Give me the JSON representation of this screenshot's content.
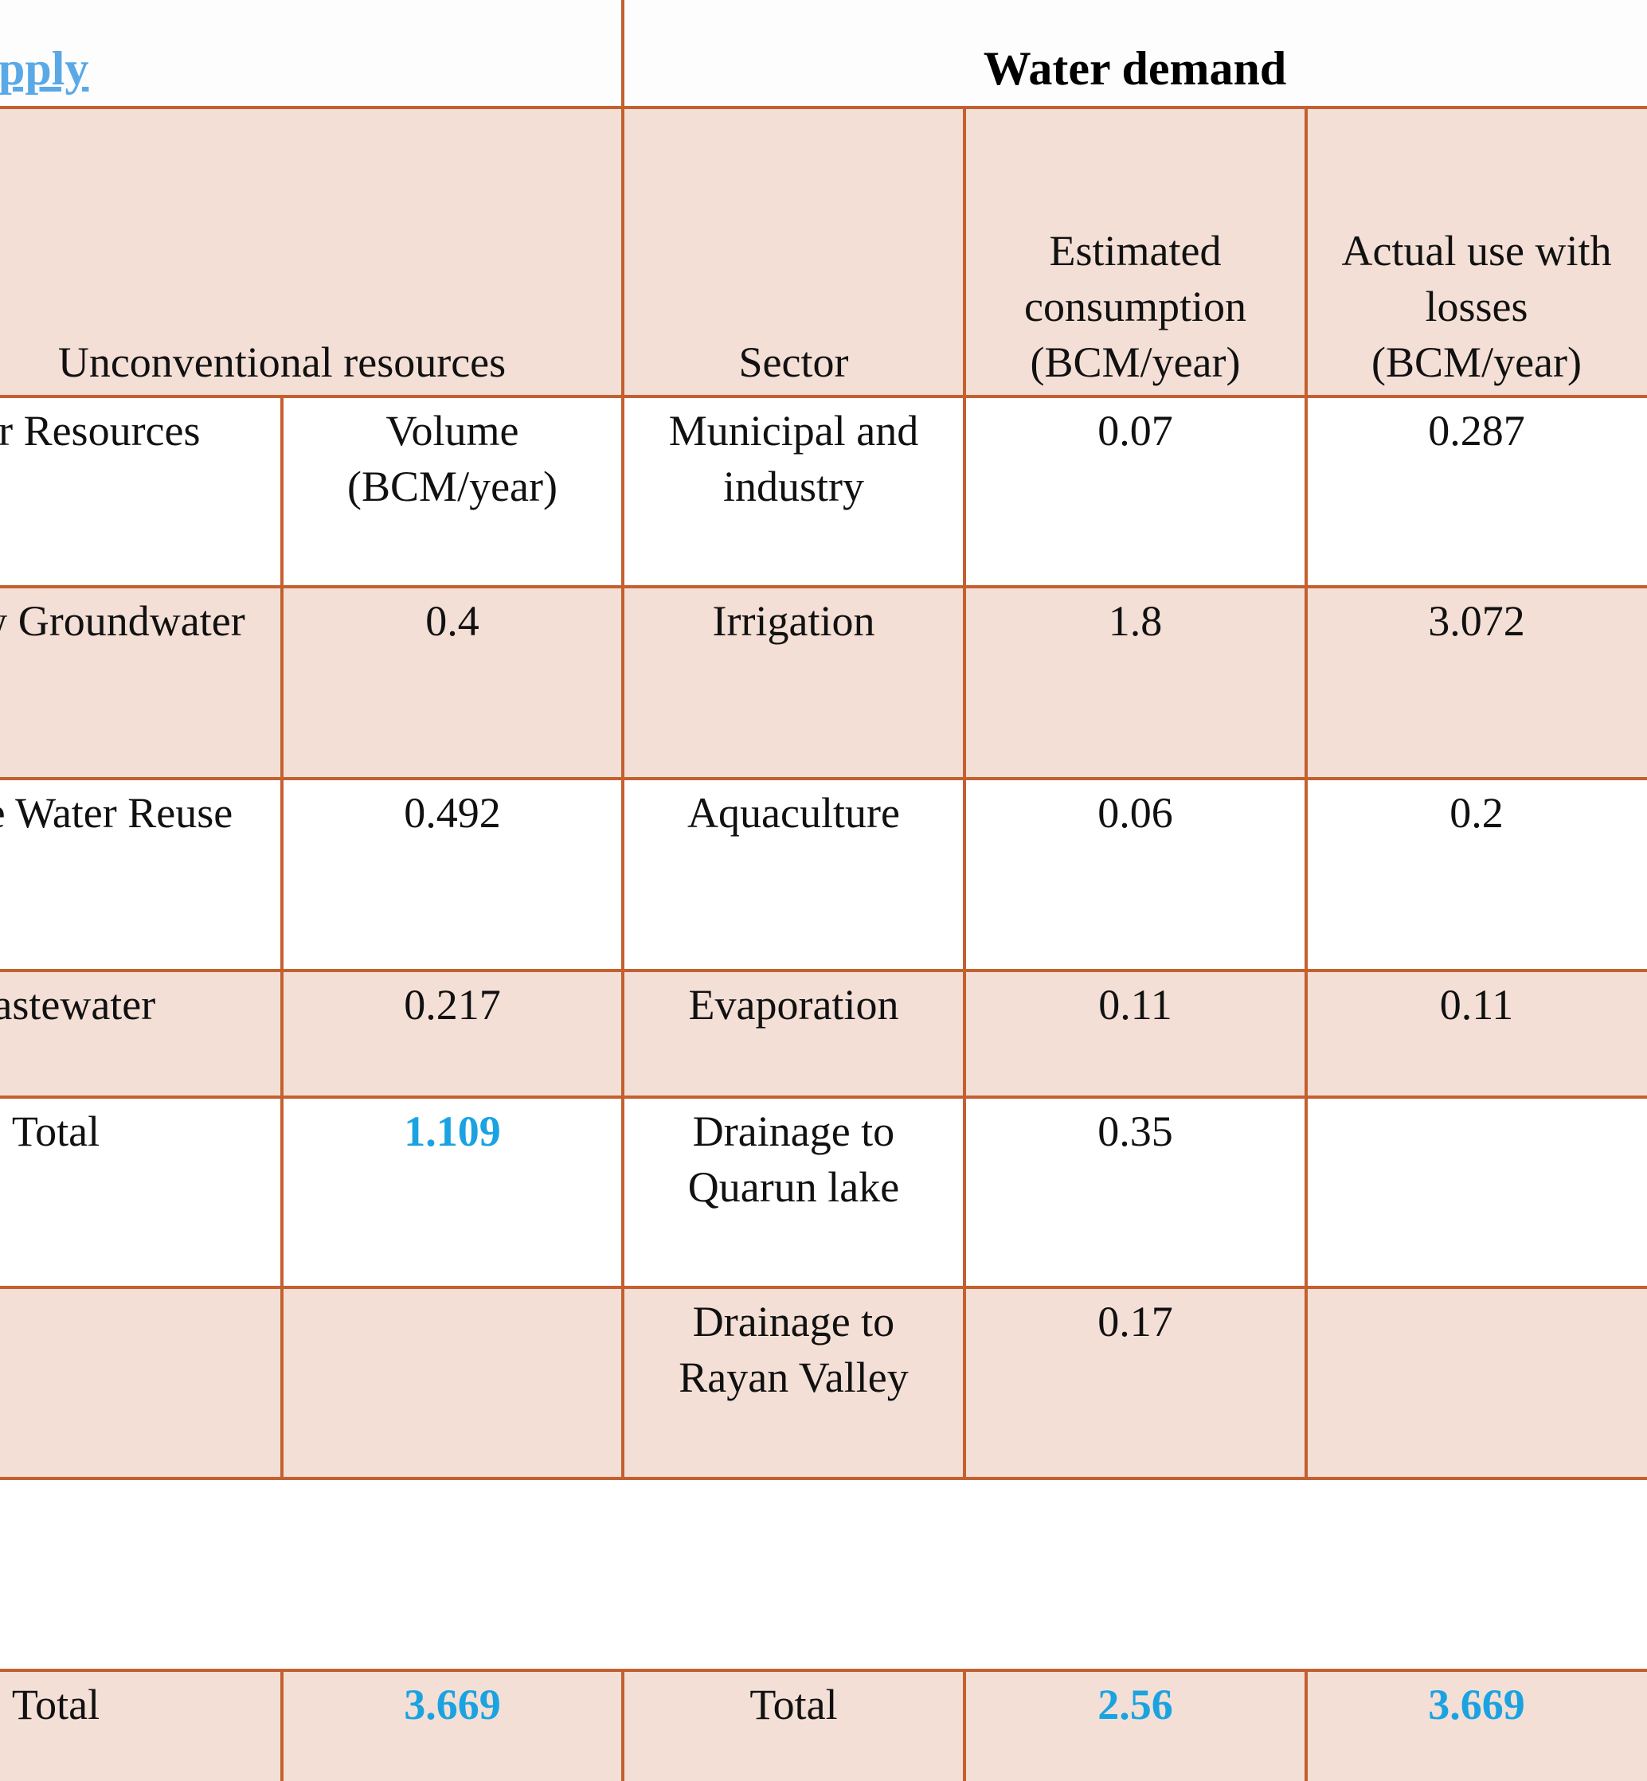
{
  "header": {
    "left": "pply",
    "right": "Water demand"
  },
  "table": {
    "header_row": [
      "Unconventional resources",
      "Sector",
      "Estimated consumption (BCM/year)",
      "Actual use with losses (BCM/year)"
    ],
    "highlight_color": "#1aa3e0",
    "rows": [
      [
        "Water Resources",
        "Volume (BCM/year)",
        "Municipal and industry",
        0.07,
        0.287
      ],
      [
        "Shallow Groundwater",
        0.4,
        "Irrigation",
        1.8,
        3.072
      ],
      [
        "rainage Water Reuse",
        0.492,
        "Aquaculture",
        0.06,
        0.2
      ],
      [
        "Wastewater",
        0.217,
        "Evaporation",
        0.11,
        0.11
      ],
      [
        "Total",
        {
          "text": 1.109,
          "highlight": true
        },
        "Drainage to Quarun lake",
        0.35,
        null
      ],
      [
        null,
        null,
        "Drainage to Rayan Valley",
        0.17,
        null
      ]
    ],
    "total_row": [
      "Total",
      {
        "text": 3.669,
        "highlight": true
      },
      "Total",
      {
        "text": 2.56,
        "highlight": true
      },
      {
        "text": 3.669,
        "highlight": true
      }
    ]
  }
}
